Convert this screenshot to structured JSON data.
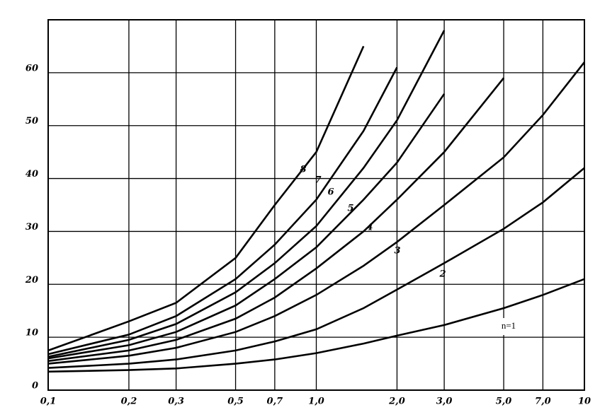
{
  "chart_data": {
    "type": "line",
    "xscale": "log",
    "grid": true,
    "color": "#000000",
    "x": [
      0.1,
      0.2,
      0.3,
      0.5,
      0.7,
      1,
      1.5,
      2,
      3,
      5,
      7,
      10
    ],
    "series": [
      {
        "name": "n=1",
        "color": "#000000",
        "values": [
          3.5,
          3.8,
          4.1,
          5,
          5.8,
          7,
          8.8,
          10.3,
          12.3,
          15.5,
          18,
          21
        ]
      },
      {
        "name": "2",
        "color": "#000000",
        "values": [
          4.2,
          5,
          5.8,
          7.5,
          9.2,
          11.5,
          15.5,
          19,
          24,
          30.5,
          35.5,
          42
        ]
      },
      {
        "name": "3",
        "color": "#000000",
        "values": [
          5,
          6.5,
          8,
          11,
          14,
          18,
          23.5,
          28,
          35,
          44,
          52,
          62
        ]
      },
      {
        "name": "4",
        "color": "#000000",
        "values": [
          5.5,
          7.5,
          9.5,
          13.5,
          17.5,
          23,
          30,
          36,
          45,
          59,
          null,
          null
        ]
      },
      {
        "name": "5",
        "color": "#000000",
        "values": [
          6,
          8.5,
          11,
          16,
          21,
          27,
          36,
          43,
          56,
          null,
          null,
          null
        ]
      },
      {
        "name": "6",
        "color": "#000000",
        "values": [
          6.3,
          9.5,
          12.5,
          18.5,
          24,
          31,
          42,
          51,
          68,
          null,
          null,
          null
        ]
      },
      {
        "name": "7",
        "color": "#000000",
        "values": [
          6.8,
          10.5,
          14,
          21,
          27.5,
          36,
          49,
          61,
          null,
          null,
          null,
          null
        ]
      },
      {
        "name": "8",
        "color": "#000000",
        "values": [
          7.5,
          13,
          16.5,
          25,
          35,
          45,
          65,
          null,
          null,
          null,
          null,
          null
        ]
      }
    ],
    "xlim": [
      0.1,
      10
    ],
    "ylim": [
      0,
      70
    ],
    "xticks": [
      {
        "value": 0.1,
        "label": "0,1"
      },
      {
        "value": 0.2,
        "label": "0,2"
      },
      {
        "value": 0.3,
        "label": "0,3"
      },
      {
        "value": 0.5,
        "label": "0,5"
      },
      {
        "value": 0.7,
        "label": "0,7"
      },
      {
        "value": 1,
        "label": "1,0"
      },
      {
        "value": 2,
        "label": "2,0"
      },
      {
        "value": 3,
        "label": "3,0"
      },
      {
        "value": 5,
        "label": "5,0"
      },
      {
        "value": 7,
        "label": "7,0"
      },
      10
    ],
    "yticks": [
      0,
      10,
      20,
      30,
      40,
      50,
      60
    ]
  }
}
